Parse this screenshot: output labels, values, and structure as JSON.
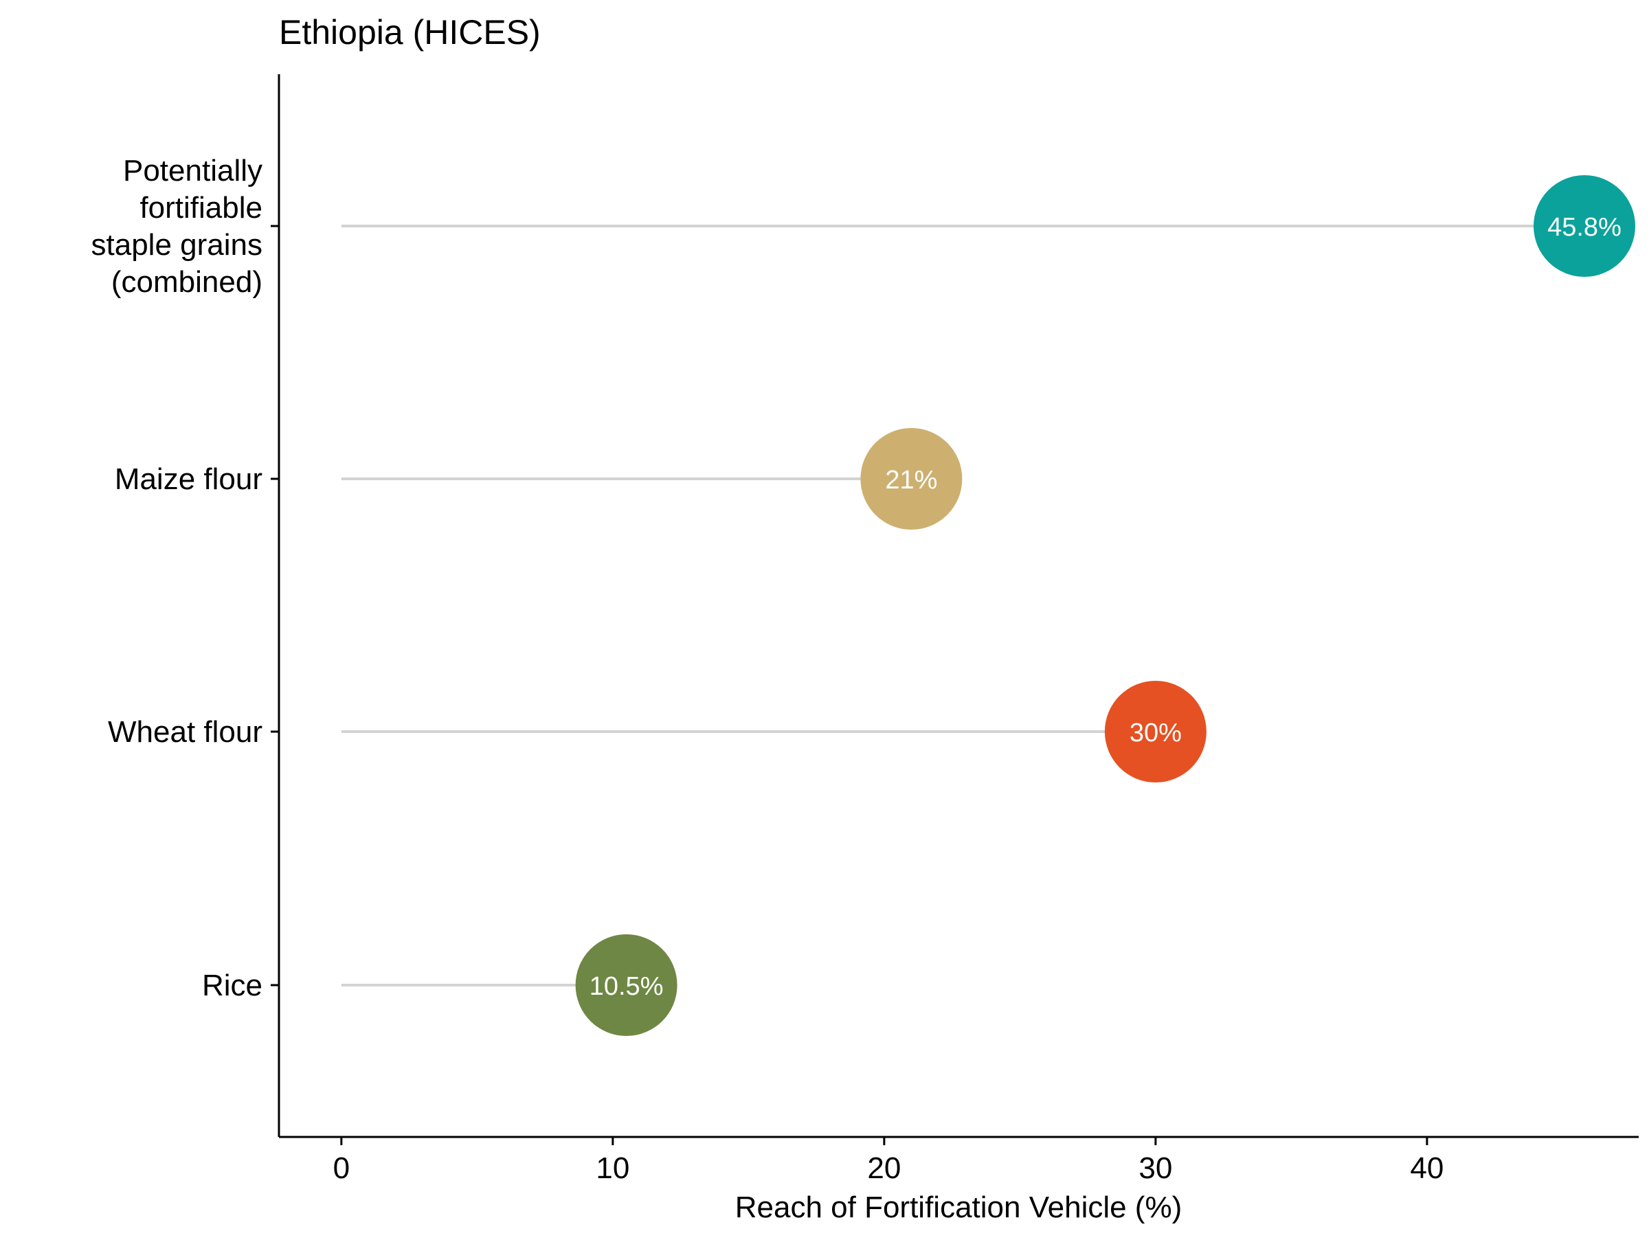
{
  "chart_data": {
    "type": "lollipop",
    "title": "Ethiopia (HICES)",
    "xlabel": "Reach of Fortification Vehicle (%)",
    "ylabel": "",
    "xlim": [
      -2.3,
      47.8
    ],
    "xticks": [
      0,
      10,
      20,
      30,
      40
    ],
    "grid": false,
    "legend": "none",
    "categories": [
      {
        "label_lines": [
          "Potentially",
          "fortifiable",
          "staple grains",
          "(combined)"
        ],
        "value": 45.8,
        "label": "45.8%",
        "color": "#0ba29b"
      },
      {
        "label_lines": [
          "Maize flour"
        ],
        "value": 21,
        "label": "21%",
        "color": "#cdb070"
      },
      {
        "label_lines": [
          "Wheat flour"
        ],
        "value": 30,
        "label": "30%",
        "color": "#e55122"
      },
      {
        "label_lines": [
          "Rice"
        ],
        "value": 10.5,
        "label": "10.5%",
        "color": "#6e8744"
      }
    ],
    "stem_color": "#d3d3d3"
  }
}
